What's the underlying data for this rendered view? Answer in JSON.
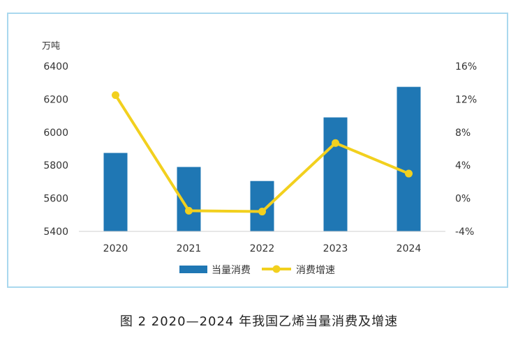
{
  "caption": "图 2  2020—2024 年我国乙烯当量消费及增速",
  "chart_data": {
    "type": "bar",
    "categories": [
      "2020",
      "2021",
      "2022",
      "2023",
      "2024"
    ],
    "series": [
      {
        "name": "当量消费",
        "type": "bar",
        "axis": "left",
        "color": "#1f77b4",
        "values": [
          5875,
          5790,
          5705,
          6090,
          6275
        ]
      },
      {
        "name": "消费增速",
        "type": "line",
        "axis": "right",
        "color": "#f2d01e",
        "values": [
          12.5,
          -1.5,
          -1.6,
          6.7,
          3.0
        ]
      }
    ],
    "y_left": {
      "unit_label": "万吨",
      "ylim": [
        5400,
        6400
      ],
      "ticks": [
        "5400",
        "5600",
        "5800",
        "6000",
        "6200",
        "6400"
      ]
    },
    "y_right": {
      "ylim": [
        -4,
        16
      ],
      "ticks": [
        "-4%",
        "0%",
        "4%",
        "8%",
        "12%",
        "16%"
      ]
    },
    "legend_position": "bottom-center",
    "grid": false
  }
}
